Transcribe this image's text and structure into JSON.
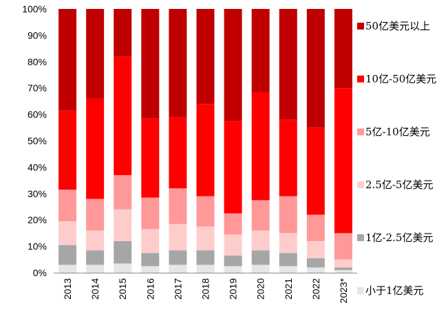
{
  "chart_data": {
    "type": "bar",
    "stacked": true,
    "normalized": true,
    "categories": [
      "2013",
      "2014",
      "2015",
      "2016",
      "2017",
      "2018",
      "2019",
      "2020",
      "2021",
      "2022",
      "2023*"
    ],
    "ylim": [
      0,
      100
    ],
    "yticks": [
      "0%",
      "10%",
      "20%",
      "30%",
      "40%",
      "50%",
      "60%",
      "70%",
      "80%",
      "90%",
      "100%"
    ],
    "legend_position": "right",
    "series": [
      {
        "name": "小于1亿美元",
        "color": "#e6e6e6",
        "values": [
          3,
          3,
          3.5,
          2.5,
          3,
          3,
          2.5,
          3,
          2.5,
          2,
          1
        ]
      },
      {
        "name": "1亿-2.5亿美元",
        "color": "#a6a6a6",
        "values": [
          7.5,
          5.5,
          8.5,
          5,
          5.5,
          5.5,
          4,
          5.5,
          5,
          3.5,
          1
        ]
      },
      {
        "name": "2.5亿-5亿美元",
        "color": "#ffcccc",
        "values": [
          9,
          7.5,
          12,
          9,
          10,
          9,
          8,
          7.5,
          7.5,
          6.5,
          3
        ]
      },
      {
        "name": "5亿-10亿美元",
        "color": "#ff9999",
        "values": [
          12,
          12,
          13,
          12,
          13.5,
          11.5,
          8,
          11.5,
          14,
          10,
          10
        ]
      },
      {
        "name": "10亿-50亿美元",
        "color": "#ff0000",
        "values": [
          30,
          38,
          45,
          30,
          27,
          35,
          35,
          41,
          29,
          33,
          55
        ]
      },
      {
        "name": "50亿美元以上",
        "color": "#c00000",
        "values": [
          38.5,
          34,
          18,
          41.5,
          41,
          36,
          42.5,
          31.5,
          42,
          45,
          30
        ]
      }
    ]
  }
}
